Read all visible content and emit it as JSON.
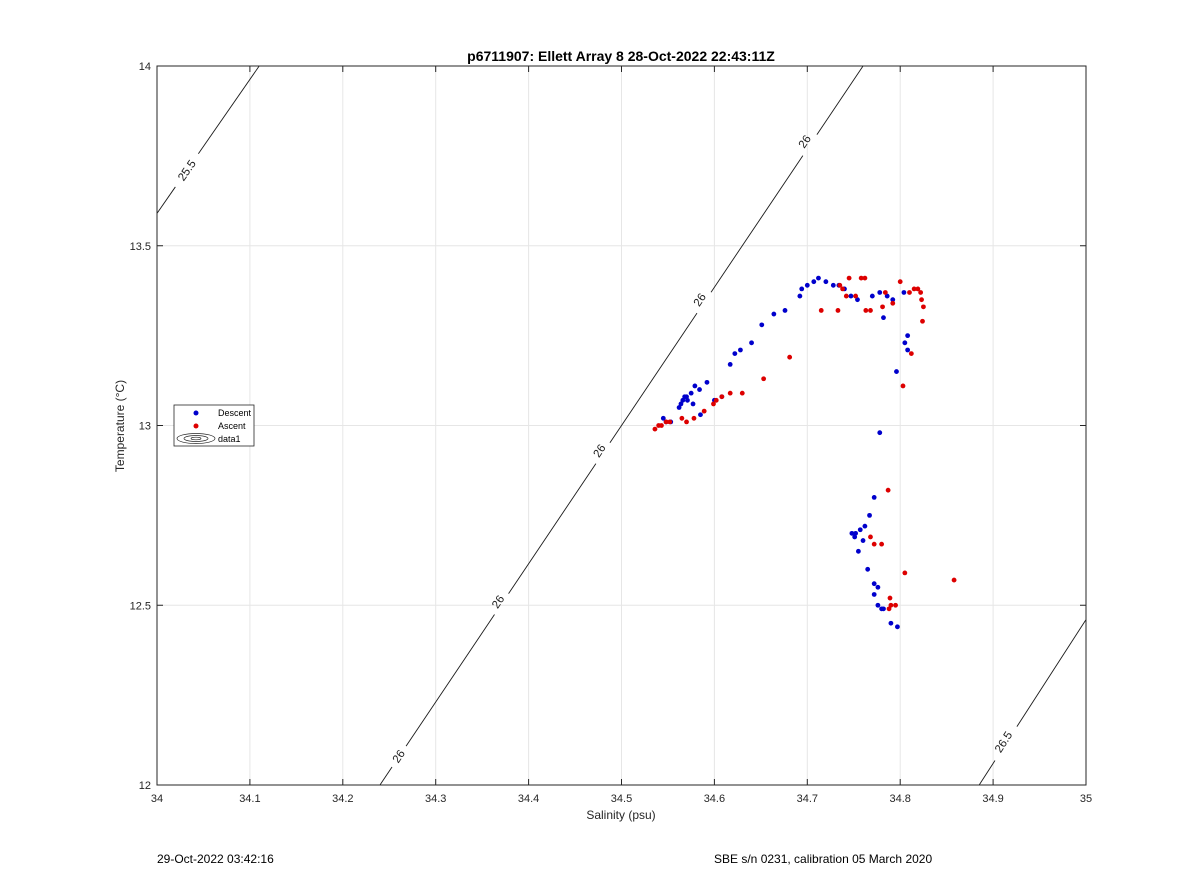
{
  "chart_data": {
    "type": "scatter",
    "title": "p6711907: Ellett Array 8 28-Oct-2022 22:43:11Z",
    "xlabel": "Salinity (psu)",
    "ylabel": "Temperature (°C)",
    "xlim": [
      34,
      35
    ],
    "ylim": [
      12,
      14
    ],
    "xticks": [
      "34",
      "34.1",
      "34.2",
      "34.3",
      "34.4",
      "34.5",
      "34.6",
      "34.7",
      "34.8",
      "34.9",
      "35"
    ],
    "yticks": [
      "12",
      "12.5",
      "13",
      "13.5",
      "14"
    ],
    "grid": true,
    "legend": {
      "placement": "left",
      "entries": [
        "Descent",
        "Ascent",
        "data1"
      ]
    },
    "contours": [
      {
        "level": "25.5",
        "points": [
          [
            34.0,
            13.59
          ],
          [
            34.11,
            14.0
          ]
        ],
        "labels": [
          {
            "text": "25.5",
            "x": 34.032,
            "y": 13.71
          }
        ]
      },
      {
        "level": "26",
        "points": [
          [
            34.24,
            12.0
          ],
          [
            34.76,
            14.0
          ]
        ],
        "labels": [
          {
            "text": "26",
            "x": 34.26,
            "y": 12.08
          },
          {
            "text": "26",
            "x": 34.367,
            "y": 12.51
          },
          {
            "text": "26",
            "x": 34.476,
            "y": 12.93
          },
          {
            "text": "26",
            "x": 34.584,
            "y": 13.35
          },
          {
            "text": "26",
            "x": 34.697,
            "y": 13.79
          }
        ]
      },
      {
        "level": "26.5",
        "points": [
          [
            34.885,
            12.0
          ],
          [
            35.0,
            12.46
          ]
        ],
        "labels": [
          {
            "text": "26.5",
            "x": 34.911,
            "y": 12.12
          }
        ]
      }
    ],
    "series": [
      {
        "name": "Descent",
        "color": "#0000cc",
        "points": [
          [
            34.545,
            13.02
          ],
          [
            34.548,
            13.01
          ],
          [
            34.553,
            13.01
          ],
          [
            34.562,
            13.05
          ],
          [
            34.564,
            13.06
          ],
          [
            34.566,
            13.07
          ],
          [
            34.568,
            13.08
          ],
          [
            34.57,
            13.08
          ],
          [
            34.571,
            13.07
          ],
          [
            34.575,
            13.09
          ],
          [
            34.577,
            13.06
          ],
          [
            34.579,
            13.11
          ],
          [
            34.584,
            13.1
          ],
          [
            34.585,
            13.03
          ],
          [
            34.592,
            13.12
          ],
          [
            34.6,
            13.07
          ],
          [
            34.608,
            13.08
          ],
          [
            34.617,
            13.17
          ],
          [
            34.622,
            13.2
          ],
          [
            34.628,
            13.21
          ],
          [
            34.64,
            13.23
          ],
          [
            34.651,
            13.28
          ],
          [
            34.664,
            13.31
          ],
          [
            34.676,
            13.32
          ],
          [
            34.692,
            13.36
          ],
          [
            34.694,
            13.38
          ],
          [
            34.7,
            13.39
          ],
          [
            34.707,
            13.4
          ],
          [
            34.712,
            13.41
          ],
          [
            34.72,
            13.4
          ],
          [
            34.728,
            13.39
          ],
          [
            34.734,
            13.39
          ],
          [
            34.74,
            13.38
          ],
          [
            34.747,
            13.36
          ],
          [
            34.754,
            13.35
          ],
          [
            34.77,
            13.36
          ],
          [
            34.778,
            13.37
          ],
          [
            34.782,
            13.3
          ],
          [
            34.786,
            13.36
          ],
          [
            34.792,
            13.35
          ],
          [
            34.796,
            13.15
          ],
          [
            34.804,
            13.37
          ],
          [
            34.805,
            13.23
          ],
          [
            34.808,
            13.25
          ],
          [
            34.808,
            13.21
          ],
          [
            34.778,
            12.98
          ],
          [
            34.772,
            12.8
          ],
          [
            34.767,
            12.75
          ],
          [
            34.762,
            12.72
          ],
          [
            34.757,
            12.71
          ],
          [
            34.752,
            12.7
          ],
          [
            34.748,
            12.7
          ],
          [
            34.751,
            12.69
          ],
          [
            34.755,
            12.65
          ],
          [
            34.76,
            12.68
          ],
          [
            34.765,
            12.6
          ],
          [
            34.772,
            12.56
          ],
          [
            34.776,
            12.55
          ],
          [
            34.772,
            12.53
          ],
          [
            34.776,
            12.5
          ],
          [
            34.78,
            12.49
          ],
          [
            34.782,
            12.49
          ],
          [
            34.79,
            12.45
          ],
          [
            34.797,
            12.44
          ]
        ]
      },
      {
        "name": "Ascent",
        "color": "#dd0000",
        "points": [
          [
            34.536,
            12.99
          ],
          [
            34.54,
            13.0
          ],
          [
            34.543,
            13.0
          ],
          [
            34.548,
            13.01
          ],
          [
            34.552,
            13.01
          ],
          [
            34.565,
            13.02
          ],
          [
            34.57,
            13.01
          ],
          [
            34.578,
            13.02
          ],
          [
            34.589,
            13.04
          ],
          [
            34.599,
            13.06
          ],
          [
            34.602,
            13.07
          ],
          [
            34.608,
            13.08
          ],
          [
            34.617,
            13.09
          ],
          [
            34.63,
            13.09
          ],
          [
            34.653,
            13.13
          ],
          [
            34.681,
            13.19
          ],
          [
            34.715,
            13.32
          ],
          [
            34.733,
            13.32
          ],
          [
            34.735,
            13.39
          ],
          [
            34.738,
            13.38
          ],
          [
            34.742,
            13.36
          ],
          [
            34.745,
            13.41
          ],
          [
            34.752,
            13.36
          ],
          [
            34.758,
            13.41
          ],
          [
            34.762,
            13.41
          ],
          [
            34.763,
            13.32
          ],
          [
            34.768,
            13.32
          ],
          [
            34.781,
            13.33
          ],
          [
            34.784,
            13.37
          ],
          [
            34.792,
            13.34
          ],
          [
            34.8,
            13.4
          ],
          [
            34.803,
            13.11
          ],
          [
            34.81,
            13.37
          ],
          [
            34.812,
            13.2
          ],
          [
            34.815,
            13.38
          ],
          [
            34.819,
            13.38
          ],
          [
            34.822,
            13.37
          ],
          [
            34.823,
            13.35
          ],
          [
            34.825,
            13.33
          ],
          [
            34.824,
            13.29
          ],
          [
            34.787,
            12.82
          ],
          [
            34.768,
            12.69
          ],
          [
            34.772,
            12.67
          ],
          [
            34.78,
            12.67
          ],
          [
            34.805,
            12.59
          ],
          [
            34.858,
            12.57
          ],
          [
            34.789,
            12.52
          ],
          [
            34.79,
            12.5
          ],
          [
            34.788,
            12.49
          ],
          [
            34.795,
            12.5
          ]
        ]
      }
    ]
  },
  "footer": {
    "timestamp": "29-Oct-2022 03:42:16",
    "calibration": "SBE s/n 0231, calibration 05 March 2020"
  }
}
